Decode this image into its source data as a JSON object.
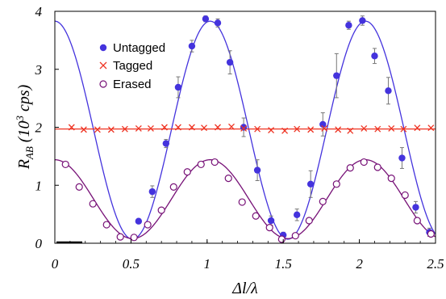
{
  "chart_data": {
    "type": "scatter",
    "xlabel": "Δl/λ",
    "ylabel_main": "R",
    "ylabel_sub": "AB",
    "ylabel_rest": " (10",
    "ylabel_sup": "3",
    "ylabel_unit": " cps)",
    "xlim": [
      0,
      2.5
    ],
    "ylim": [
      0,
      4
    ],
    "xticks": [
      "0",
      "0.5",
      "1",
      "1.5",
      "2",
      "2.5"
    ],
    "xtick_values": [
      0,
      0.5,
      1,
      1.5,
      2,
      2.5
    ],
    "yticks": [
      "0",
      "1",
      "2",
      "3",
      "4"
    ],
    "ytick_values": [
      0,
      1,
      2,
      3,
      4
    ],
    "grid": false,
    "legend_position": "top-left",
    "series": [
      {
        "name": "Untagged",
        "marker": "filled-circle",
        "color": "#4433dd",
        "x": [
          0.55,
          0.64,
          0.73,
          0.81,
          0.9,
          0.99,
          1.07,
          1.15,
          1.24,
          1.33,
          1.42,
          1.5,
          1.59,
          1.68,
          1.76,
          1.85,
          1.93,
          2.02,
          2.1,
          2.19,
          2.28,
          2.37,
          2.46
        ],
        "y": [
          0.38,
          0.89,
          1.72,
          2.69,
          3.4,
          3.87,
          3.8,
          3.12,
          2.0,
          1.26,
          0.39,
          0.14,
          0.49,
          1.02,
          2.05,
          2.89,
          3.76,
          3.84,
          3.23,
          2.63,
          1.47,
          0.62,
          0.19
        ],
        "err": [
          0.03,
          0.1,
          0.07,
          0.18,
          0.1,
          0.05,
          0.07,
          0.2,
          0.16,
          0.18,
          0.08,
          0.05,
          0.1,
          0.23,
          0.2,
          0.38,
          0.07,
          0.08,
          0.13,
          0.23,
          0.18,
          0.1,
          0.07
        ]
      },
      {
        "name": "Tagged",
        "marker": "cross",
        "color": "#ee3322",
        "x": [
          0.11,
          0.19,
          0.28,
          0.37,
          0.46,
          0.55,
          0.63,
          0.72,
          0.81,
          0.9,
          0.98,
          1.07,
          1.16,
          1.24,
          1.33,
          1.42,
          1.51,
          1.59,
          1.68,
          1.77,
          1.86,
          1.94,
          2.03,
          2.12,
          2.21,
          2.29,
          2.38,
          2.47
        ],
        "y": [
          2.0,
          1.96,
          1.96,
          1.96,
          1.97,
          1.98,
          1.98,
          2.0,
          2.0,
          2.0,
          1.99,
          2.0,
          2.01,
          1.98,
          1.97,
          1.95,
          1.94,
          1.97,
          1.96,
          1.98,
          1.96,
          1.94,
          1.98,
          1.97,
          1.98,
          1.97,
          1.99,
          1.99
        ]
      },
      {
        "name": "Erased",
        "marker": "open-circle",
        "color": "#771177",
        "x": [
          0.07,
          0.16,
          0.25,
          0.34,
          0.43,
          0.52,
          0.61,
          0.7,
          0.78,
          0.87,
          0.96,
          1.05,
          1.14,
          1.23,
          1.32,
          1.41,
          1.49,
          1.58,
          1.67,
          1.76,
          1.85,
          1.94,
          2.03,
          2.12,
          2.21,
          2.3,
          2.38,
          2.47
        ],
        "y": [
          1.36,
          0.97,
          0.68,
          0.32,
          0.11,
          0.1,
          0.32,
          0.57,
          0.97,
          1.23,
          1.36,
          1.4,
          1.12,
          0.71,
          0.47,
          0.27,
          0.07,
          0.13,
          0.39,
          0.72,
          1.02,
          1.3,
          1.4,
          1.31,
          1.12,
          0.83,
          0.39,
          0.16
        ]
      }
    ],
    "fits": [
      {
        "for": "Untagged",
        "color": "#4433dd",
        "amplitude": 1.88,
        "offset": 1.95,
        "period": 1.02,
        "x_start": 0.0
      },
      {
        "for": "Erased",
        "color": "#771177",
        "amplitude": 0.68,
        "offset": 0.76,
        "period": 1.02,
        "x_start": 0.0
      }
    ]
  }
}
